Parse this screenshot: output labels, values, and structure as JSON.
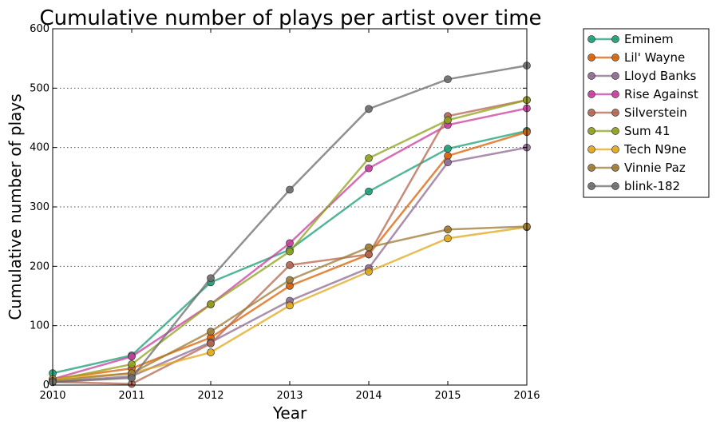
{
  "chart_data": {
    "type": "line",
    "title": "Cumulative number of plays per artist over time",
    "xlabel": "Year",
    "ylabel": "Cumulative number of plays",
    "x": [
      2010,
      2011,
      2012,
      2013,
      2014,
      2015,
      2016
    ],
    "xlim": [
      2010,
      2016
    ],
    "ylim": [
      0,
      600
    ],
    "xticks": [
      "2010",
      "2011",
      "2012",
      "2013",
      "2014",
      "2015",
      "2016"
    ],
    "yticks": [
      "0",
      "100",
      "200",
      "300",
      "400",
      "500",
      "600"
    ],
    "grid": "horizontal dotted",
    "legend_position": "outside-top-right",
    "series": [
      {
        "name": "Eminem",
        "color": "#1b9e77",
        "values": [
          20,
          50,
          173,
          228,
          326,
          398,
          428
        ]
      },
      {
        "name": "Lil' Wayne",
        "color": "#d95f02",
        "values": [
          10,
          28,
          80,
          167,
          220,
          386,
          426
        ]
      },
      {
        "name": "Lloyd Banks",
        "color": "#8e6a91",
        "values": [
          5,
          15,
          72,
          142,
          197,
          375,
          400
        ]
      },
      {
        "name": "Rise Against",
        "color": "#c83c9c",
        "values": [
          10,
          48,
          136,
          239,
          365,
          438,
          466
        ]
      },
      {
        "name": "Silverstein",
        "color": "#b5644e",
        "values": [
          5,
          2,
          70,
          202,
          220,
          453,
          480
        ]
      },
      {
        "name": "Sum 41",
        "color": "#8fa11c",
        "values": [
          8,
          35,
          136,
          225,
          382,
          446,
          480
        ]
      },
      {
        "name": "Tech N9ne",
        "color": "#e0a71a",
        "values": [
          10,
          20,
          55,
          134,
          191,
          247,
          266
        ]
      },
      {
        "name": "Vinnie Paz",
        "color": "#9c7a32",
        "values": [
          7,
          20,
          90,
          177,
          232,
          262,
          267
        ]
      },
      {
        "name": "blink-182",
        "color": "#6b6b6b",
        "values": [
          5,
          12,
          180,
          329,
          465,
          515,
          538
        ]
      }
    ]
  }
}
